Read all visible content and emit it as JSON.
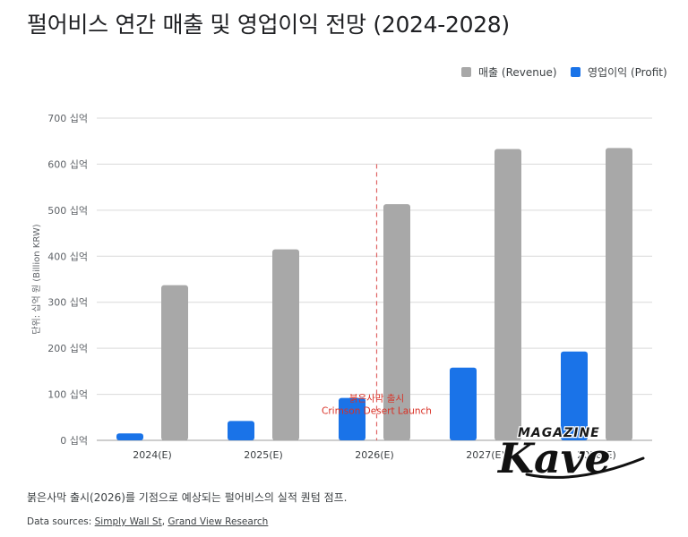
{
  "title": "펄어비스 연간 매출 및 영업이익 전망 (2024-2028)",
  "note": "붉은사막 출시(2026)를 기점으로 예상되는 펄어비스의 실적 퀀텀 점프.",
  "sources": {
    "prefix": "Data sources:",
    "links": [
      "Simply Wall St",
      "Grand View Research"
    ],
    "separator": ", "
  },
  "watermark": {
    "top": "MAGAZINE",
    "word": "Kave"
  },
  "colors": {
    "revenue": "#a8a8a8",
    "profit": "#1a73e8",
    "launch_line": "#e06666",
    "launch_text": "#d93025",
    "grid": "#d9d9d9"
  },
  "chart_data": {
    "type": "bar",
    "categories": [
      "2024(E)",
      "2025(E)",
      "2026(E)",
      "2027(E)",
      "2028(E)"
    ],
    "series": [
      {
        "name": "영업이익 (Profit)",
        "values": [
          15,
          42,
          92,
          158,
          193
        ]
      },
      {
        "name": "매출 (Revenue)",
        "values": [
          337,
          415,
          513,
          633,
          635
        ]
      }
    ],
    "legend_order": [
      "매출 (Revenue)",
      "영업이익 (Profit)"
    ],
    "legend_position": "top-right",
    "ylabel": "단위: 십억 원 (Billion KRW)",
    "ylim": [
      0,
      700
    ],
    "yticks": [
      0,
      100,
      200,
      300,
      400,
      500,
      600,
      700
    ],
    "ytick_labels": [
      "0 십억",
      "100 십억",
      "200 십억",
      "300 십억",
      "400 십억",
      "500 십억",
      "600 십억",
      "700 십억"
    ],
    "grid": true,
    "annotation": {
      "category": "2026(E)",
      "lines": [
        "붉은사막 출시",
        "Crimson Desert Launch"
      ]
    }
  }
}
